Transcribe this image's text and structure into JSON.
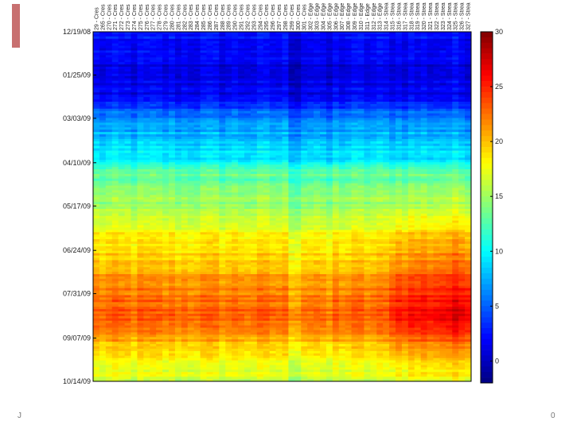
{
  "slide": {
    "accent_color": "#c87070",
    "footer_left": "J",
    "footer_right": "0"
  },
  "chart_data": {
    "type": "heatmap",
    "title": "",
    "xlabel": "",
    "ylabel": "",
    "colormap": "jet",
    "color_range": [
      -2,
      30
    ],
    "colorbar": {
      "ticks": [
        0,
        5,
        10,
        15,
        20,
        25,
        30
      ],
      "labels": [
        "0",
        "5",
        "10",
        "15",
        "20",
        "25",
        "30"
      ],
      "placement": "right"
    },
    "y_ticks": {
      "labels": [
        "12/19/08",
        "01/25/09",
        "03/03/09",
        "04/10/09",
        "05/17/09",
        "06/24/09",
        "07/31/09",
        "09/07/09",
        "10/14/09"
      ],
      "dates": [
        "2008-12-19",
        "2009-01-25",
        "2009-03-03",
        "2009-04-10",
        "2009-05-17",
        "2009-06-24",
        "2009-07-31",
        "2009-09-07",
        "2009-10-14"
      ]
    },
    "date_range": [
      "2008-12-19",
      "2009-10-14"
    ],
    "column_count": 60,
    "column_labels": [
      "29 - Cres",
      "265 - Cres",
      "270 - Cres",
      "271 - Cres",
      "272 - Cres",
      "273 - Cres",
      "274 - Cres",
      "275 - Cres",
      "276 - Cres",
      "277 - Cres",
      "278 - Cres",
      "279 - Cres",
      "280 - Cres",
      "281 - Cres",
      "282 - Cres",
      "283 - Cres",
      "284 - Cres",
      "285 - Cres",
      "286 - Cres",
      "287 - Cres",
      "288 - Cres",
      "289 - Cres",
      "290 - Cres",
      "291 - Cres",
      "292 - Cres",
      "293 - Cres",
      "294 - Cres",
      "295 - Cres",
      "296 - Cres",
      "297 - Cres",
      "298 - Cres",
      "299 - Cres",
      "300 - Cres",
      "301 - Cres",
      "302 - Edge",
      "303 - Edge",
      "304 - Edge",
      "305 - Edge",
      "306 - Edge",
      "307 - Edge",
      "308 - Edge",
      "309 - Edge",
      "310 - Edge",
      "311 - Edge",
      "312 - Edge",
      "313 - Edge",
      "314 - Strea",
      "315 - Strea",
      "316 - Strea",
      "317 - Strea",
      "318 - Strea",
      "319 - Strea",
      "320 - Strea",
      "321 - Strea",
      "322 - Strea",
      "323 - Strea",
      "324 - Strea",
      "325 - Strea",
      "326 - Strea",
      "327 - Strea"
    ],
    "seasonal_profile": [
      {
        "date": "2008-12-19",
        "value": 3
      },
      {
        "date": "2009-01-01",
        "value": 2
      },
      {
        "date": "2009-01-25",
        "value": 1
      },
      {
        "date": "2009-02-15",
        "value": 2
      },
      {
        "date": "2009-03-03",
        "value": 6
      },
      {
        "date": "2009-03-20",
        "value": 8
      },
      {
        "date": "2009-04-10",
        "value": 10
      },
      {
        "date": "2009-04-20",
        "value": 13
      },
      {
        "date": "2009-05-17",
        "value": 15
      },
      {
        "date": "2009-06-01",
        "value": 17
      },
      {
        "date": "2009-06-24",
        "value": 19
      },
      {
        "date": "2009-07-15",
        "value": 21
      },
      {
        "date": "2009-07-31",
        "value": 22
      },
      {
        "date": "2009-08-20",
        "value": 23
      },
      {
        "date": "2009-09-07",
        "value": 21
      },
      {
        "date": "2009-09-25",
        "value": 18
      },
      {
        "date": "2009-10-14",
        "value": 16
      }
    ],
    "warm_columns_note_range": [
      47,
      59
    ],
    "warm_column_offset_peak": 4,
    "cool_column_offsets": {
      "31": -1,
      "32": -1,
      "36": -1,
      "37": -1
    }
  }
}
